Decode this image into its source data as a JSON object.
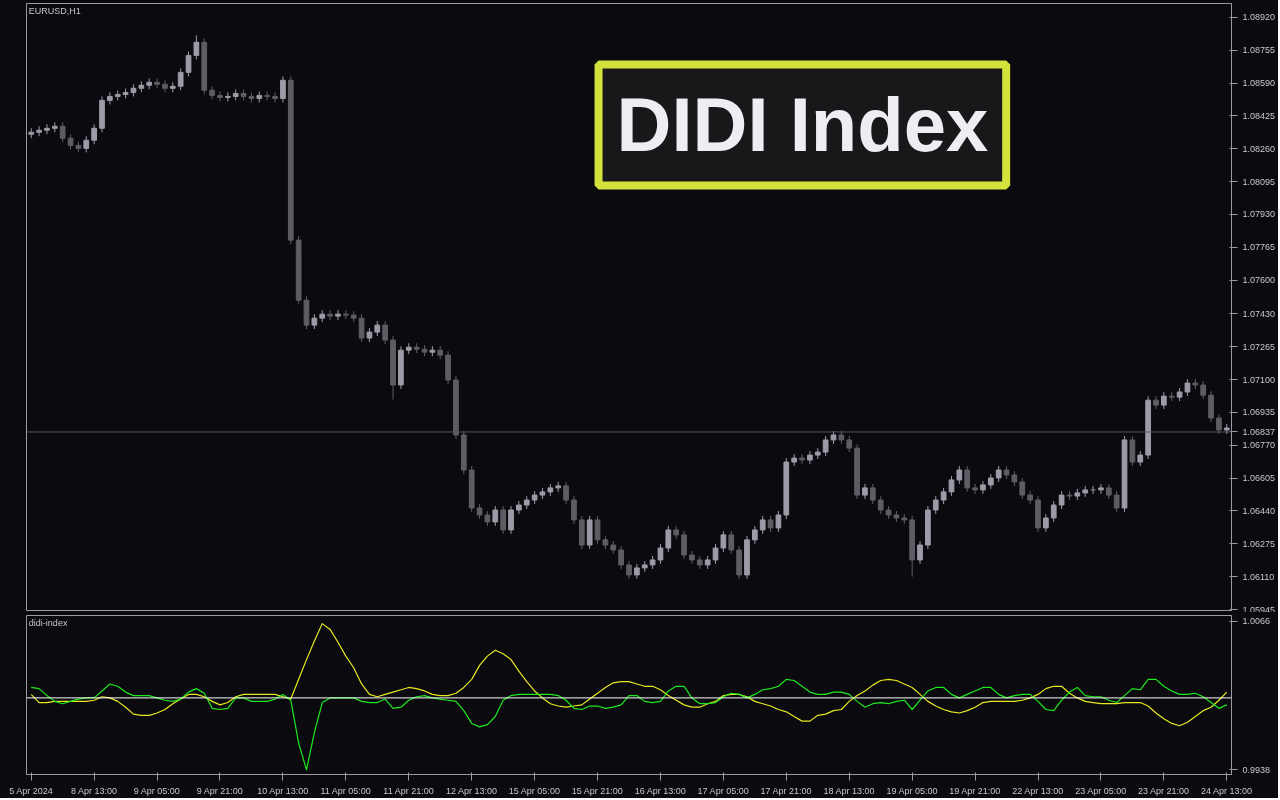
{
  "chart_data": [
    {
      "type": "candlestick",
      "title": "EURUSD,H1",
      "annotations": [
        "DIDI Index"
      ],
      "colors": [
        "#9c9ca8",
        "#9c9ca8",
        "#9c9ca8",
        "#9c9ca8",
        "#5d5d64",
        "#5d5d64",
        "#5d5d64",
        "#9c9ca8",
        "#9c9ca8",
        "#9c9ca8",
        "#9c9ca8",
        "#9c9ca8",
        "#9c9ca8",
        "#9c9ca8",
        "#9c9ca8",
        "#9c9ca8",
        "#5d5d64",
        "#5d5d64",
        "#9c9ca8",
        "#9c9ca8",
        "#9c9ca8",
        "#9c9ca8",
        "#5d5d64",
        "#5d5d64",
        "#5d5d64",
        "#9c9ca8",
        "#9c9ca8",
        "#5d5d64",
        "#5d5d64",
        "#9c9ca8",
        "#5d5d64",
        "#5d5d64",
        "#9c9ca8",
        "#5d5d64",
        "#5d5d64",
        "#5d5d64",
        "#9c9ca8",
        "#9c9ca8",
        "#5d5d64",
        "#9c9ca8",
        "#5d5d64",
        "#5d5d64",
        "#5d5d64",
        "#9c9ca8",
        "#9c9ca8",
        "#5d5d64",
        "#5d5d64",
        "#9c9ca8",
        "#9c9ca8",
        "#5d5d64",
        "#5d5d64",
        "#9c9ca8",
        "#5d5d64",
        "#5d5d64",
        "#5d5d64",
        "#5d5d64",
        "#5d5d64",
        "#5d5d64",
        "#5d5d64",
        "#9c9ca8",
        "#5d5d64",
        "#9c9ca8",
        "#9c9ca8",
        "#9c9ca8",
        "#9c9ca8",
        "#9c9ca8",
        "#9c9ca8",
        "#9c9ca8",
        "#5d5d64",
        "#5d5d64",
        "#5d5d64",
        "#9c9ca8",
        "#5d5d64",
        "#5d5d64",
        "#5d5d64",
        "#5d5d64",
        "#5d5d64",
        "#9c9ca8",
        "#9c9ca8",
        "#9c9ca8",
        "#9c9ca8",
        "#9c9ca8",
        "#5d5d64",
        "#5d5d64",
        "#5d5d64",
        "#5d5d64",
        "#9c9ca8",
        "#9c9ca8",
        "#9c9ca8",
        "#5d5d64",
        "#5d5d64",
        "#9c9ca8",
        "#9c9ca8",
        "#9c9ca8",
        "#5d5d64",
        "#9c9ca8",
        "#9c9ca8",
        "#9c9ca8",
        "#5d5d64",
        "#9c9ca8",
        "#9c9ca8",
        "#9c9ca8",
        "#9c9ca8",
        "#5d5d64",
        "#5d5d64",
        "#5d5d64",
        "#9c9ca8",
        "#5d5d64",
        "#5d5d64",
        "#5d5d64",
        "#5d5d64",
        "#5d5d64",
        "#5d5d64",
        "#9c9ca8",
        "#9c9ca8",
        "#9c9ca8",
        "#9c9ca8",
        "#9c9ca8",
        "#9c9ca8",
        "#5d5d64",
        "#5d5d64",
        "#9c9ca8",
        "#9c9ca8",
        "#9c9ca8",
        "#5d5d64",
        "#5d5d64",
        "#5d5d64",
        "#5d5d64",
        "#5d5d64",
        "#9c9ca8",
        "#9c9ca8",
        "#9c9ca8",
        "#5d5d64",
        "#9c9ca8",
        "#9c9ca8",
        "#9c9ca8",
        "#9c9ca8",
        "#5d5d64",
        "#5d5d64",
        "#9c9ca8",
        "#5d5d64",
        "#9c9ca8",
        "#9c9ca8",
        "#5d5d64",
        "#9c9ca8",
        "#5d5d64",
        "#9c9ca8",
        "#9c9ca8",
        "#5d5d64",
        "#5d5d64",
        "#5d5d64",
        "#5d5d64",
        "#9c9ca8"
      ],
      "tick_labels": "y",
      "grid": false,
      "categories": [
        null,
        null,
        null,
        null,
        null,
        null,
        null,
        null,
        null,
        null,
        null,
        null,
        null,
        null,
        null,
        null,
        null,
        null,
        null,
        null,
        null,
        null,
        null,
        null,
        null,
        null,
        null,
        null,
        null,
        null,
        null,
        null,
        null,
        null,
        null,
        null,
        null,
        null,
        null,
        null,
        null,
        null,
        null,
        null,
        null,
        null,
        null,
        null,
        null,
        null,
        null,
        null,
        null,
        null,
        null,
        null,
        null,
        null,
        null,
        null,
        null,
        null,
        null,
        null,
        null,
        null,
        null,
        null,
        null,
        null,
        null,
        null,
        null,
        null,
        null,
        null,
        null,
        null,
        null,
        null,
        null,
        null,
        null,
        null,
        null,
        null,
        null,
        null,
        null,
        null,
        null,
        null,
        null,
        null,
        null,
        null,
        null,
        null,
        null,
        null,
        null,
        null,
        null,
        null,
        null,
        null,
        null,
        null,
        null,
        null,
        null,
        null,
        null,
        null,
        null,
        null,
        null,
        null,
        null,
        null,
        null,
        null,
        null,
        null,
        null,
        null,
        null,
        null,
        null,
        null,
        null,
        null,
        null,
        null,
        null,
        null,
        null,
        null,
        null,
        null,
        null,
        null,
        null,
        null,
        null,
        null,
        null,
        null,
        null,
        null,
        null,
        null,
        null
      ],
      "ylim": [
        1.0594,
        1.0899
      ],
      "yticks": [
        {
          "value": 1.0892,
          "label": "1.08920"
        },
        {
          "value": 1.08755,
          "label": "1.08755"
        },
        {
          "value": 1.0859,
          "label": "1.08590"
        },
        {
          "value": 1.08425,
          "label": "1.08425"
        },
        {
          "value": 1.0826,
          "label": "1.08260"
        },
        {
          "value": 1.08095,
          "label": "1.08095"
        },
        {
          "value": 1.0793,
          "label": "1.07930"
        },
        {
          "value": 1.07765,
          "label": "1.07765"
        },
        {
          "value": 1.076,
          "label": "1.07600"
        },
        {
          "value": 1.0743,
          "label": "1.07430"
        },
        {
          "value": 1.07265,
          "label": "1.07265"
        },
        {
          "value": 1.071,
          "label": "1.07100"
        },
        {
          "value": 1.06935,
          "label": "1.06935"
        },
        {
          "value": 1.0677,
          "label": "1.06770"
        },
        {
          "value": 1.06605,
          "label": "1.06605"
        },
        {
          "value": 1.0644,
          "label": "1.06440"
        },
        {
          "value": 1.06275,
          "label": "1.06275"
        },
        {
          "value": 1.0611,
          "label": "1.06110"
        },
        {
          "value": 1.05945,
          "label": "1.05945"
        }
      ],
      "ref_lines": [
        {
          "axis": "y",
          "value": 1.06837,
          "label": "1.06837",
          "color": "#55555f"
        }
      ],
      "ohlc": [
        [
          1.08333,
          1.08363,
          1.08313,
          1.08343
        ],
        [
          1.08343,
          1.08373,
          1.08323,
          1.08353
        ],
        [
          1.08353,
          1.08383,
          1.08333,
          1.08363
        ],
        [
          1.08363,
          1.08393,
          1.08343,
          1.08373
        ],
        [
          1.08373,
          1.08393,
          1.08293,
          1.08313
        ],
        [
          1.08313,
          1.08333,
          1.08257,
          1.08277
        ],
        [
          1.08277,
          1.08297,
          1.08242,
          1.08262
        ],
        [
          1.08262,
          1.08323,
          1.08242,
          1.08303
        ],
        [
          1.08303,
          1.08383,
          1.08283,
          1.08363
        ],
        [
          1.08363,
          1.08523,
          1.08343,
          1.08503
        ],
        [
          1.08503,
          1.08543,
          1.08483,
          1.08523
        ],
        [
          1.08523,
          1.08553,
          1.08503,
          1.08533
        ],
        [
          1.08533,
          1.08563,
          1.08513,
          1.08543
        ],
        [
          1.08543,
          1.08584,
          1.08523,
          1.08564
        ],
        [
          1.08564,
          1.08599,
          1.08544,
          1.08579
        ],
        [
          1.08579,
          1.08614,
          1.08559,
          1.08594
        ],
        [
          1.08594,
          1.08614,
          1.08564,
          1.08584
        ],
        [
          1.08584,
          1.08604,
          1.08544,
          1.08564
        ],
        [
          1.08564,
          1.08594,
          1.08544,
          1.08574
        ],
        [
          1.08574,
          1.08664,
          1.08554,
          1.08644
        ],
        [
          1.08644,
          1.08749,
          1.08624,
          1.08729
        ],
        [
          1.08729,
          1.0883,
          1.08709,
          1.08795
        ],
        [
          1.08795,
          1.08815,
          1.08534,
          1.08554
        ],
        [
          1.08554,
          1.08574,
          1.08508,
          1.08528
        ],
        [
          1.08528,
          1.08548,
          1.08498,
          1.08518
        ],
        [
          1.08518,
          1.08543,
          1.08498,
          1.08523
        ],
        [
          1.08523,
          1.08558,
          1.08503,
          1.08538
        ],
        [
          1.08538,
          1.08558,
          1.08503,
          1.08523
        ],
        [
          1.08523,
          1.08543,
          1.08493,
          1.08513
        ],
        [
          1.08513,
          1.08548,
          1.08493,
          1.08528
        ],
        [
          1.08528,
          1.08548,
          1.08503,
          1.08523
        ],
        [
          1.08523,
          1.08543,
          1.08493,
          1.08513
        ],
        [
          1.08513,
          1.08624,
          1.08493,
          1.08604
        ],
        [
          1.08604,
          1.08624,
          1.07781,
          1.07801
        ],
        [
          1.07801,
          1.07821,
          1.07479,
          1.07499
        ],
        [
          1.07499,
          1.07519,
          1.07354,
          1.07374
        ],
        [
          1.07374,
          1.07429,
          1.07354,
          1.07409
        ],
        [
          1.07409,
          1.07449,
          1.07389,
          1.07429
        ],
        [
          1.07429,
          1.07449,
          1.07399,
          1.07419
        ],
        [
          1.07419,
          1.07449,
          1.07399,
          1.07429
        ],
        [
          1.07429,
          1.07449,
          1.07404,
          1.07424
        ],
        [
          1.07424,
          1.07444,
          1.07389,
          1.07409
        ],
        [
          1.07409,
          1.07429,
          1.07289,
          1.07309
        ],
        [
          1.07309,
          1.07359,
          1.07289,
          1.07339
        ],
        [
          1.07339,
          1.07394,
          1.07319,
          1.07374
        ],
        [
          1.07374,
          1.07394,
          1.07279,
          1.07299
        ],
        [
          1.07299,
          1.07319,
          1.07,
          1.07073
        ],
        [
          1.07073,
          1.07268,
          1.07053,
          1.07248
        ],
        [
          1.07248,
          1.07283,
          1.07228,
          1.07263
        ],
        [
          1.07263,
          1.07283,
          1.07233,
          1.07253
        ],
        [
          1.07253,
          1.07273,
          1.07218,
          1.07238
        ],
        [
          1.07238,
          1.07268,
          1.07218,
          1.07248
        ],
        [
          1.07248,
          1.07268,
          1.07203,
          1.07223
        ],
        [
          1.07223,
          1.07243,
          1.07078,
          1.07098
        ],
        [
          1.07098,
          1.07118,
          1.06802,
          1.06822
        ],
        [
          1.06822,
          1.06842,
          1.06626,
          1.06646
        ],
        [
          1.06646,
          1.06666,
          1.06435,
          1.06455
        ],
        [
          1.06455,
          1.06475,
          1.064,
          1.0642
        ],
        [
          1.0642,
          1.0644,
          1.06365,
          1.06385
        ],
        [
          1.06385,
          1.06465,
          1.06365,
          1.06445
        ],
        [
          1.06445,
          1.06465,
          1.06325,
          1.06345
        ],
        [
          1.06345,
          1.06465,
          1.06325,
          1.06445
        ],
        [
          1.06445,
          1.0649,
          1.06425,
          1.0647
        ],
        [
          1.0647,
          1.06515,
          1.0645,
          1.06495
        ],
        [
          1.06495,
          1.0654,
          1.06475,
          1.0652
        ],
        [
          1.0652,
          1.06556,
          1.065,
          1.06536
        ],
        [
          1.06536,
          1.06576,
          1.06516,
          1.06556
        ],
        [
          1.06556,
          1.06586,
          1.06536,
          1.06566
        ],
        [
          1.06566,
          1.06586,
          1.06475,
          1.06495
        ],
        [
          1.06495,
          1.06515,
          1.06375,
          1.06395
        ],
        [
          1.06395,
          1.06415,
          1.06249,
          1.06269
        ],
        [
          1.06269,
          1.06415,
          1.06249,
          1.06395
        ],
        [
          1.06395,
          1.06415,
          1.06275,
          1.06295
        ],
        [
          1.06295,
          1.06315,
          1.06249,
          1.06269
        ],
        [
          1.06269,
          1.06289,
          1.06224,
          1.06244
        ],
        [
          1.06244,
          1.06264,
          1.06149,
          1.06169
        ],
        [
          1.06169,
          1.06189,
          1.06099,
          1.06119
        ],
        [
          1.06119,
          1.06174,
          1.06099,
          1.06154
        ],
        [
          1.06154,
          1.06189,
          1.06134,
          1.06169
        ],
        [
          1.06169,
          1.06214,
          1.06149,
          1.06194
        ],
        [
          1.06194,
          1.06274,
          1.06174,
          1.06254
        ],
        [
          1.06254,
          1.06365,
          1.06234,
          1.06345
        ],
        [
          1.06345,
          1.06365,
          1.063,
          1.0632
        ],
        [
          1.0632,
          1.0634,
          1.06199,
          1.06219
        ],
        [
          1.06219,
          1.06239,
          1.06174,
          1.06194
        ],
        [
          1.06194,
          1.06214,
          1.06149,
          1.06169
        ],
        [
          1.06169,
          1.06214,
          1.06149,
          1.06194
        ],
        [
          1.06194,
          1.06274,
          1.06174,
          1.06254
        ],
        [
          1.06254,
          1.0634,
          1.06234,
          1.0632
        ],
        [
          1.0632,
          1.0634,
          1.06224,
          1.06244
        ],
        [
          1.06244,
          1.06264,
          1.06099,
          1.06119
        ],
        [
          1.06119,
          1.06315,
          1.06099,
          1.06295
        ],
        [
          1.06295,
          1.06365,
          1.06275,
          1.06345
        ],
        [
          1.06345,
          1.06415,
          1.06325,
          1.06395
        ],
        [
          1.06395,
          1.06415,
          1.06335,
          1.06355
        ],
        [
          1.06355,
          1.0644,
          1.06335,
          1.0642
        ],
        [
          1.0642,
          1.06706,
          1.064,
          1.06686
        ],
        [
          1.06686,
          1.06726,
          1.06666,
          1.06706
        ],
        [
          1.06706,
          1.06726,
          1.06676,
          1.06696
        ],
        [
          1.06696,
          1.06741,
          1.06676,
          1.06721
        ],
        [
          1.06721,
          1.06756,
          1.06701,
          1.06736
        ],
        [
          1.06736,
          1.06817,
          1.06716,
          1.06797
        ],
        [
          1.06797,
          1.06842,
          1.06777,
          1.06822
        ],
        [
          1.06822,
          1.06842,
          1.06777,
          1.06797
        ],
        [
          1.06797,
          1.06817,
          1.06736,
          1.06756
        ],
        [
          1.06756,
          1.06776,
          1.065,
          1.0652
        ],
        [
          1.0652,
          1.06576,
          1.065,
          1.06556
        ],
        [
          1.06556,
          1.06576,
          1.06475,
          1.06495
        ],
        [
          1.06495,
          1.06515,
          1.06425,
          1.06445
        ],
        [
          1.06445,
          1.06465,
          1.064,
          1.0642
        ],
        [
          1.0642,
          1.0644,
          1.06385,
          1.06405
        ],
        [
          1.06405,
          1.06425,
          1.06375,
          1.06395
        ],
        [
          1.06395,
          1.06415,
          1.0611,
          1.06194
        ],
        [
          1.06194,
          1.06289,
          1.06174,
          1.06269
        ],
        [
          1.06269,
          1.06465,
          1.06249,
          1.06445
        ],
        [
          1.06445,
          1.06515,
          1.06425,
          1.06495
        ],
        [
          1.06495,
          1.06556,
          1.06475,
          1.06536
        ],
        [
          1.06536,
          1.06616,
          1.06516,
          1.06596
        ],
        [
          1.06596,
          1.06666,
          1.06576,
          1.06646
        ],
        [
          1.06646,
          1.06666,
          1.06536,
          1.06556
        ],
        [
          1.06556,
          1.06576,
          1.06526,
          1.06546
        ],
        [
          1.06546,
          1.06591,
          1.06526,
          1.06571
        ],
        [
          1.06571,
          1.06626,
          1.06551,
          1.06606
        ],
        [
          1.06606,
          1.06666,
          1.06586,
          1.06646
        ],
        [
          1.06646,
          1.06666,
          1.06601,
          1.06621
        ],
        [
          1.06621,
          1.06641,
          1.06566,
          1.06586
        ],
        [
          1.06586,
          1.06606,
          1.065,
          1.0652
        ],
        [
          1.0652,
          1.0654,
          1.06475,
          1.06495
        ],
        [
          1.06495,
          1.06515,
          1.06335,
          1.06355
        ],
        [
          1.06355,
          1.06425,
          1.06335,
          1.06405
        ],
        [
          1.06405,
          1.0649,
          1.06385,
          1.0647
        ],
        [
          1.0647,
          1.0654,
          1.0645,
          1.0652
        ],
        [
          1.0652,
          1.0654,
          1.06495,
          1.06515
        ],
        [
          1.06515,
          1.06551,
          1.06495,
          1.06531
        ],
        [
          1.06531,
          1.06566,
          1.06511,
          1.06546
        ],
        [
          1.06546,
          1.06566,
          1.06526,
          1.06546
        ],
        [
          1.06546,
          1.06576,
          1.06526,
          1.06556
        ],
        [
          1.06556,
          1.06576,
          1.065,
          1.0652
        ],
        [
          1.0652,
          1.0654,
          1.06435,
          1.06455
        ],
        [
          1.06455,
          1.06817,
          1.06435,
          1.06797
        ],
        [
          1.06797,
          1.06817,
          1.06666,
          1.06686
        ],
        [
          1.06686,
          1.06741,
          1.06666,
          1.06721
        ],
        [
          1.06721,
          1.07017,
          1.06701,
          1.06997
        ],
        [
          1.06997,
          1.07017,
          1.06952,
          1.06972
        ],
        [
          1.06972,
          1.07037,
          1.06952,
          1.07017
        ],
        [
          1.07017,
          1.07037,
          1.06992,
          1.07012
        ],
        [
          1.07012,
          1.07058,
          1.06992,
          1.07038
        ],
        [
          1.07038,
          1.07103,
          1.07018,
          1.07083
        ],
        [
          1.07083,
          1.07103,
          1.07053,
          1.07073
        ],
        [
          1.07073,
          1.07093,
          1.07002,
          1.07022
        ],
        [
          1.07022,
          1.07042,
          1.06887,
          1.06907
        ],
        [
          1.06907,
          1.06927,
          1.06827,
          1.06847
        ],
        [
          1.06847,
          1.06877,
          1.06827,
          1.06857
        ]
      ]
    },
    {
      "type": "line",
      "title": "didi-index",
      "grid": false,
      "ylim": [
        0.9934,
        1.0071
      ],
      "yticks": [
        {
          "value": 1.0066,
          "label": "1.0066"
        },
        {
          "value": 0.9938,
          "label": "0.9938"
        }
      ],
      "ref_lines": [
        {
          "axis": "y",
          "value": 1,
          "color": "#ffffff"
        }
      ],
      "categories": [
        "5 Apr 2024",
        null,
        null,
        null,
        null,
        null,
        null,
        null,
        "8 Apr 13:00",
        null,
        null,
        null,
        null,
        null,
        null,
        null,
        "9 Apr 05:00",
        null,
        null,
        null,
        null,
        null,
        null,
        null,
        "9 Apr 21:00",
        null,
        null,
        null,
        null,
        null,
        null,
        null,
        "10 Apr 13:00",
        null,
        null,
        null,
        null,
        null,
        null,
        null,
        "11 Apr 05:00",
        null,
        null,
        null,
        null,
        null,
        null,
        null,
        "11 Apr 21:00",
        null,
        null,
        null,
        null,
        null,
        null,
        null,
        "12 Apr 13:00",
        null,
        null,
        null,
        null,
        null,
        null,
        null,
        "15 Apr 05:00",
        null,
        null,
        null,
        null,
        null,
        null,
        null,
        "15 Apr 21:00",
        null,
        null,
        null,
        null,
        null,
        null,
        null,
        "16 Apr 13:00",
        null,
        null,
        null,
        null,
        null,
        null,
        null,
        "17 Apr 05:00",
        null,
        null,
        null,
        null,
        null,
        null,
        null,
        "17 Apr 21:00",
        null,
        null,
        null,
        null,
        null,
        null,
        null,
        "18 Apr 13:00",
        null,
        null,
        null,
        null,
        null,
        null,
        null,
        "19 Apr 05:00",
        null,
        null,
        null,
        null,
        null,
        null,
        null,
        "19 Apr 21:00",
        null,
        null,
        null,
        null,
        null,
        null,
        null,
        "22 Apr 13:00",
        null,
        null,
        null,
        null,
        null,
        null,
        null,
        "23 Apr 05:00",
        null,
        null,
        null,
        null,
        null,
        null,
        null,
        "23 Apr 21:00",
        null,
        null,
        null,
        null,
        null,
        null,
        null,
        "24 Apr 13:00"
      ],
      "series": [
        {
          "color": "#e8e820",
          "values": [
            1.0003,
            0.9996,
            0.9996,
            0.9997,
            0.9997,
            0.9997,
            0.9997,
            0.9997,
            0.9998,
            1.0001,
            1.0,
            0.9997,
            0.9992,
            0.9986,
            0.9985,
            0.9985,
            0.9987,
            0.999,
            0.9995,
            0.9999,
            1.0003,
            1.0003,
            1.0001,
            0.9997,
            0.9994,
            0.9996,
            1.0001,
            1.0003,
            1.0003,
            1.0003,
            1.0003,
            1.0003,
            1.0001,
            0.9999,
            1.0016,
            1.0033,
            1.0049,
            1.0064,
            1.0059,
            1.0048,
            1.0036,
            1.0026,
            1.0012,
            1.0003,
            1.0001,
            1.0003,
            1.0005,
            1.0007,
            1.0009,
            1.0008,
            1.0006,
            1.0003,
            1.0002,
            1.0002,
            1.0004,
            1.0009,
            1.0016,
            1.0028,
            1.0036,
            1.0041,
            1.0038,
            1.0033,
            1.0023,
            1.0014,
            1.0006,
            1.0,
            0.9995,
            0.9993,
            0.9992,
            0.9993,
            0.9994,
            0.9999,
            1.0004,
            1.0009,
            1.0013,
            1.0014,
            1.0014,
            1.0012,
            1.001,
            1.001,
            1.0007,
            1.0002,
            0.9998,
            0.9994,
            0.9992,
            0.9992,
            0.9995,
            0.9997,
            1.0002,
            1.0003,
            1.0003,
            1.0001,
            0.9997,
            0.9995,
            0.9993,
            0.999,
            0.9988,
            0.9984,
            0.998,
            0.998,
            0.9985,
            0.9986,
            0.9989,
            0.999,
            0.9997,
            1.0002,
            1.0006,
            1.0011,
            1.0015,
            1.0016,
            1.0015,
            1.0012,
            1.0009,
            1.0003,
            0.9997,
            0.9993,
            0.999,
            0.9988,
            0.9987,
            0.9989,
            0.9992,
            0.9996,
            0.9997,
            0.9997,
            0.9997,
            0.9997,
            0.9998,
            1.0,
            1.0003,
            1.0008,
            1.001,
            1.001,
            1.0004,
            1.0,
            0.9997,
            0.9996,
            0.9995,
            0.9995,
            0.9995,
            0.9996,
            0.9996,
            0.9996,
            0.9993,
            0.9987,
            0.9982,
            0.9978,
            0.9976,
            0.9979,
            0.9984,
            0.9989,
            0.9992,
            0.9998,
            1.0005
          ]
        },
        {
          "color": "#1ee81e",
          "values": [
            1.0009,
            1.0008,
            1.0002,
            0.9997,
            0.9995,
            0.9997,
            0.9999,
            1.0,
            1.0,
            1.0006,
            1.0012,
            1.001,
            1.0005,
            1.0002,
            1.0002,
            1.0002,
            1.0,
            0.9998,
            0.9997,
            0.9999,
            1.0005,
            1.0008,
            1.0004,
            0.9991,
            0.999,
            0.9991,
            1.0,
            1.0,
            0.9997,
            0.9997,
            0.9997,
            0.9999,
            1.0003,
            0.9998,
            0.9961,
            0.9938,
            0.997,
            0.9996,
            1.0,
            1.0,
            1.0,
            1.0,
            0.9997,
            0.9996,
            0.9996,
            0.9999,
            0.9991,
            0.9992,
            0.9998,
            1.0001,
            1.0002,
            1.0,
            0.9999,
            0.9998,
            0.9997,
            0.9989,
            0.9978,
            0.9975,
            0.9977,
            0.9984,
            0.9998,
            1.0002,
            1.0003,
            1.0003,
            1.0003,
            1.0003,
            1.0003,
            1.0002,
            0.9998,
            0.9991,
            0.999,
            0.9993,
            0.9993,
            0.9991,
            0.9992,
            0.9994,
            1.0002,
            1.0002,
            0.9997,
            0.9996,
            0.9997,
            1.0006,
            1.001,
            1.001,
            1.0,
            0.9995,
            0.9995,
            0.9996,
            1.0001,
            1.0004,
            1.0003,
            1.0,
            1.0003,
            1.0007,
            1.0008,
            1.001,
            1.0016,
            1.0015,
            1.001,
            1.0005,
            1.0003,
            1.0003,
            1.0005,
            1.0005,
            1.0003,
            0.9997,
            0.9992,
            0.9995,
            0.9996,
            0.9995,
            0.9997,
            0.9998,
            0.999,
            0.9998,
            1.0006,
            1.0009,
            1.0009,
            1.0003,
            1.0,
            1.0003,
            1.0006,
            1.0009,
            1.0009,
            1.0003,
            1.0,
            1.0002,
            1.0003,
            1.0003,
            0.9997,
            0.999,
            0.9989,
            0.9998,
            1.0005,
            1.0009,
            1.0002,
            1.0001,
            1.0001,
            0.9998,
            0.9996,
            1.0002,
            1.0008,
            1.0007,
            1.0016,
            1.0016,
            1.001,
            1.0006,
            1.0003,
            1.0003,
            1.0004,
            1.0001,
            0.9996,
            0.9991,
            0.9994
          ]
        }
      ]
    }
  ]
}
